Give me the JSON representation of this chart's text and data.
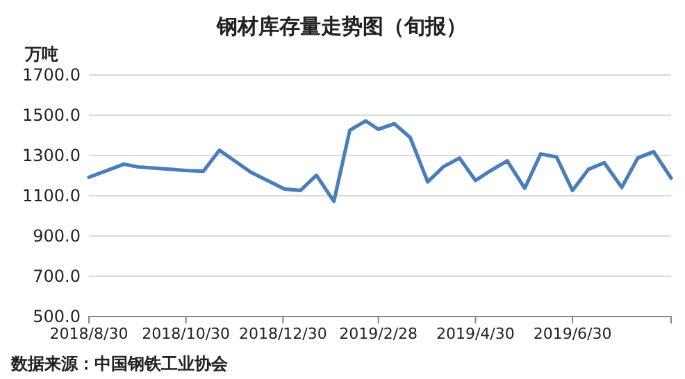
{
  "chart_data": {
    "type": "line",
    "title": "钢材库存量走势图（旬报）",
    "ylabel": "万吨",
    "annotations": [
      "数据来源：中国钢铁工业协会"
    ],
    "x": [
      "2018-08-30",
      "2018-09-21",
      "2018-09-30",
      "2018-10-31",
      "2018-11-10",
      "2018-11-20",
      "2018-12-10",
      "2018-12-31",
      "2019-01-10",
      "2019-01-20",
      "2019-01-31",
      "2019-02-10",
      "2019-02-20",
      "2019-02-28",
      "2019-03-10",
      "2019-03-20",
      "2019-03-31",
      "2019-04-10",
      "2019-04-20",
      "2019-04-30",
      "2019-05-10",
      "2019-05-20",
      "2019-05-31",
      "2019-06-10",
      "2019-06-20",
      "2019-06-30",
      "2019-07-10",
      "2019-07-20",
      "2019-07-31",
      "2019-08-10",
      "2019-08-20",
      "2019-08-31"
    ],
    "series": [
      {
        "color": "#4a7ebb",
        "values": [
          1192,
          1257,
          1243,
          1225,
          1222,
          1326,
          1216,
          1133,
          1126,
          1202,
          1072,
          1425,
          1472,
          1430,
          1458,
          1389,
          1169,
          1245,
          1287,
          1176,
          1227,
          1273,
          1137,
          1308,
          1292,
          1126,
          1231,
          1264,
          1141,
          1287,
          1319,
          1188
        ]
      }
    ],
    "xlim": [
      "2018-08-30",
      "2019-08-31"
    ],
    "xticks": [
      {
        "value": "2018-08-30",
        "label": "2018/8/30"
      },
      {
        "value": "2018-10-30",
        "label": "2018/10/30"
      },
      {
        "value": "2018-12-30",
        "label": "2018/12/30"
      },
      {
        "value": "2019-02-28",
        "label": "2019/2/28"
      },
      {
        "value": "2019-04-30",
        "label": "2019/4/30"
      },
      {
        "value": "2019-06-30",
        "label": "2019/6/30"
      }
    ],
    "ylim": [
      500,
      1700
    ],
    "yticks": [
      {
        "value": 500,
        "label": "500.0"
      },
      {
        "value": 700,
        "label": "700.0"
      },
      {
        "value": 900,
        "label": "900.0"
      },
      {
        "value": 1100,
        "label": "1100.0"
      },
      {
        "value": 1300,
        "label": "1300.0"
      },
      {
        "value": 1500,
        "label": "1500.0"
      },
      {
        "value": 1700,
        "label": "1700.0"
      }
    ],
    "grid": "y",
    "marker": "none",
    "line_style": "solid"
  }
}
